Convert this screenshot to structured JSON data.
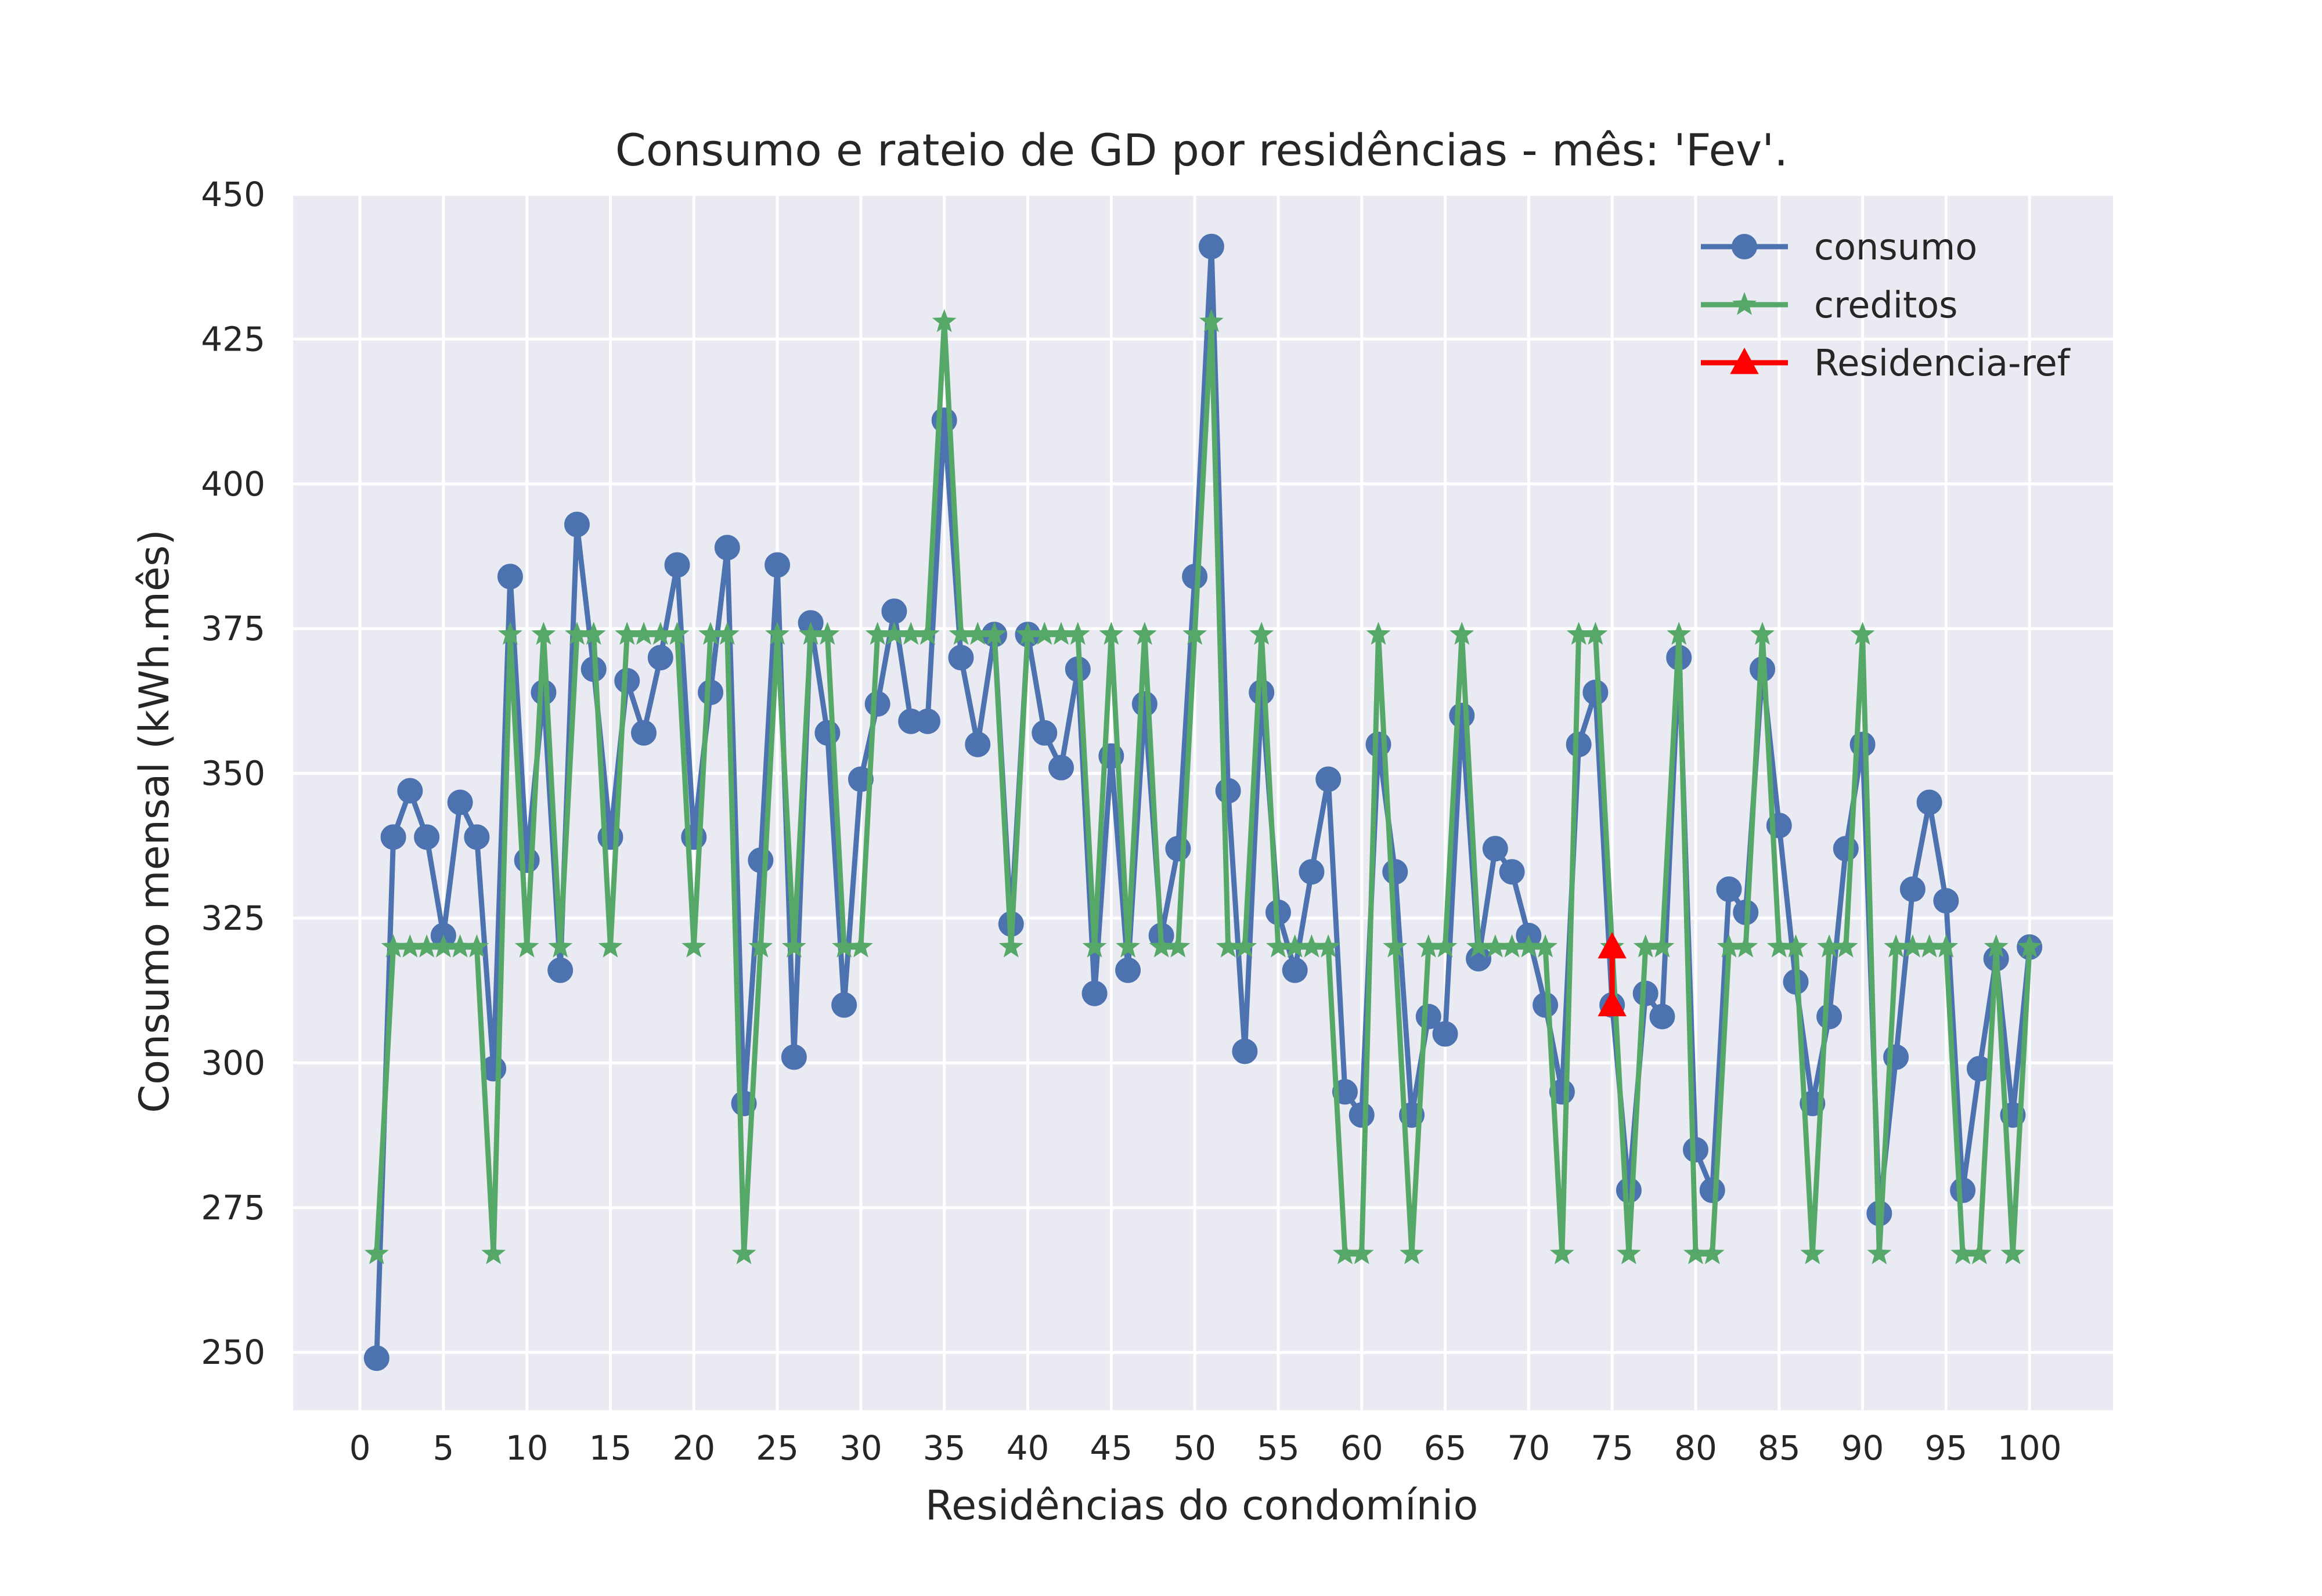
{
  "chart_data": {
    "type": "line",
    "title": "Consumo e rateio de GD por residências - mês: 'Fev'.",
    "xlabel": "Residências do condomínio",
    "ylabel": "Consumo mensal (kWh.mês)",
    "xlim": [
      -4,
      105
    ],
    "ylim": [
      240,
      450
    ],
    "xticks": [
      0,
      5,
      10,
      15,
      20,
      25,
      30,
      35,
      40,
      45,
      50,
      55,
      60,
      65,
      70,
      75,
      80,
      85,
      90,
      95,
      100
    ],
    "yticks": [
      250,
      275,
      300,
      325,
      350,
      375,
      400,
      425,
      450
    ],
    "grid": true,
    "legend_position": "top-right",
    "x": [
      1,
      2,
      3,
      4,
      5,
      6,
      7,
      8,
      9,
      10,
      11,
      12,
      13,
      14,
      15,
      16,
      17,
      18,
      19,
      20,
      21,
      22,
      23,
      24,
      25,
      26,
      27,
      28,
      29,
      30,
      31,
      32,
      33,
      34,
      35,
      36,
      37,
      38,
      39,
      40,
      41,
      42,
      43,
      44,
      45,
      46,
      47,
      48,
      49,
      50,
      51,
      52,
      53,
      54,
      55,
      56,
      57,
      58,
      59,
      60,
      61,
      62,
      63,
      64,
      65,
      66,
      67,
      68,
      69,
      70,
      71,
      72,
      73,
      74,
      75,
      76,
      77,
      78,
      79,
      80,
      81,
      82,
      83,
      84,
      85,
      86,
      87,
      88,
      89,
      90,
      91,
      92,
      93,
      94,
      95,
      96,
      97,
      98,
      99,
      100
    ],
    "series": [
      {
        "name": "consumo",
        "color": "#4c72b0",
        "marker": "circle",
        "values": [
          249,
          339,
          347,
          339,
          322,
          345,
          339,
          299,
          384,
          335,
          364,
          316,
          393,
          368,
          339,
          366,
          357,
          370,
          386,
          339,
          364,
          389,
          293,
          335,
          386,
          301,
          376,
          357,
          310,
          349,
          362,
          378,
          359,
          359,
          411,
          370,
          355,
          374,
          324,
          374,
          357,
          351,
          368,
          312,
          353,
          316,
          362,
          322,
          337,
          384,
          441,
          347,
          302,
          364,
          326,
          316,
          333,
          349,
          295,
          291,
          355,
          333,
          291,
          308,
          305,
          360,
          318,
          337,
          333,
          322,
          310,
          295,
          355,
          364,
          310,
          278,
          312,
          308,
          370,
          285,
          278,
          330,
          326,
          368,
          341,
          314,
          293,
          308,
          337,
          355,
          274,
          301,
          330,
          345,
          328,
          278,
          299,
          318,
          291,
          320
        ]
      },
      {
        "name": "creditos",
        "color": "#55a868",
        "marker": "star",
        "values": [
          267,
          320,
          320,
          320,
          320,
          320,
          320,
          267,
          374,
          320,
          374,
          320,
          374,
          374,
          320,
          374,
          374,
          374,
          374,
          320,
          374,
          374,
          267,
          320,
          374,
          320,
          374,
          374,
          320,
          320,
          374,
          374,
          374,
          374,
          428,
          374,
          374,
          374,
          320,
          374,
          374,
          374,
          374,
          320,
          374,
          320,
          374,
          320,
          320,
          374,
          428,
          320,
          320,
          374,
          320,
          320,
          320,
          320,
          267,
          267,
          374,
          320,
          267,
          320,
          320,
          374,
          320,
          320,
          320,
          320,
          320,
          267,
          374,
          374,
          320,
          267,
          320,
          320,
          374,
          267,
          267,
          320,
          320,
          374,
          320,
          320,
          267,
          320,
          320,
          374,
          267,
          320,
          320,
          320,
          320,
          267,
          267,
          320,
          267,
          320
        ]
      },
      {
        "name": "Residencia-ref",
        "color": "#ff0000",
        "marker": "triangle",
        "x": [
          75,
          75
        ],
        "values": [
          320,
          310
        ]
      }
    ]
  }
}
